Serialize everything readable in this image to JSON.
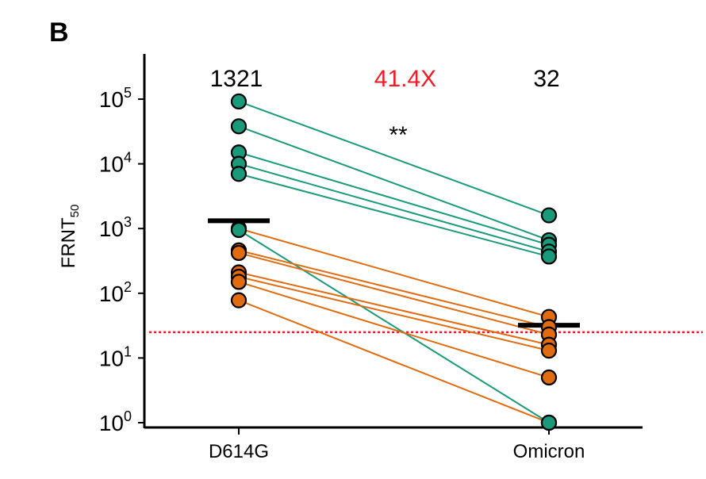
{
  "panel_label": "B",
  "chart_data": {
    "type": "scatter",
    "categories": [
      "D614G",
      "Omicron"
    ],
    "ylabel": {
      "base": "FRNT",
      "subscript": "50"
    },
    "yscale": "log",
    "ylim_exponents": [
      0,
      5
    ],
    "yticks": [
      {
        "base": "10",
        "exp": "0",
        "value": 1
      },
      {
        "base": "10",
        "exp": "1",
        "value": 10
      },
      {
        "base": "10",
        "exp": "2",
        "value": 100
      },
      {
        "base": "10",
        "exp": "3",
        "value": 1000
      },
      {
        "base": "10",
        "exp": "4",
        "value": 10000
      },
      {
        "base": "10",
        "exp": "5",
        "value": 100000
      }
    ],
    "gmt_labels": [
      "1321",
      "32"
    ],
    "fold_change": "41.4X",
    "significance": "**",
    "geometric_means": [
      1321,
      32
    ],
    "detection_limit": 25,
    "pairs": [
      {
        "group": "green",
        "d614g": 92000,
        "omicron": 1600
      },
      {
        "group": "green",
        "d614g": 38000,
        "omicron": 660
      },
      {
        "group": "green",
        "d614g": 15000,
        "omicron": 560
      },
      {
        "group": "green",
        "d614g": 10000,
        "omicron": 440
      },
      {
        "group": "green",
        "d614g": 7000,
        "omicron": 370
      },
      {
        "group": "green",
        "d614g": 950,
        "omicron": 1
      },
      {
        "group": "orange",
        "d614g": 1000,
        "omicron": 43
      },
      {
        "group": "orange",
        "d614g": 460,
        "omicron": 30
      },
      {
        "group": "orange",
        "d614g": 420,
        "omicron": 23
      },
      {
        "group": "orange",
        "d614g": 210,
        "omicron": 16
      },
      {
        "group": "orange",
        "d614g": 180,
        "omicron": 13
      },
      {
        "group": "orange",
        "d614g": 150,
        "omicron": 5
      },
      {
        "group": "orange",
        "d614g": 78,
        "omicron": 1
      }
    ],
    "colors": {
      "green": "#1a9a7a",
      "orange": "#e06b10",
      "fold": "#ee1c25",
      "limit": "#e8202a",
      "axis": "#000000"
    }
  }
}
